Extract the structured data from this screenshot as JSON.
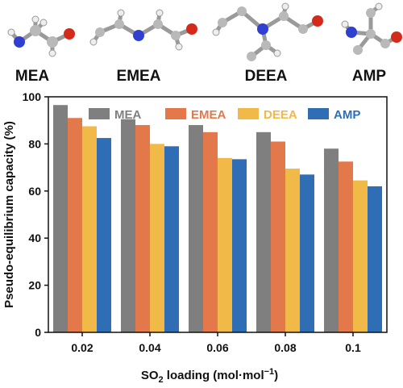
{
  "molecules": [
    {
      "label": "MEA"
    },
    {
      "label": "EMEA"
    },
    {
      "label": "DEEA"
    },
    {
      "label": "AMP"
    }
  ],
  "atom_colors": {
    "carbon": "#b9b9b9",
    "nitrogen": "#2f3fd0",
    "oxygen": "#d42a1c",
    "hydrogen": "#f2f2f2"
  },
  "chart_data": {
    "type": "bar",
    "categories": [
      "0.02",
      "0.04",
      "0.06",
      "0.08",
      "0.1"
    ],
    "series": [
      {
        "name": "MEA",
        "color": "#7f7f7f",
        "values": [
          96.5,
          90.5,
          88,
          85,
          78
        ]
      },
      {
        "name": "EMEA",
        "color": "#e3794a",
        "values": [
          91,
          88,
          85,
          81,
          72.5
        ]
      },
      {
        "name": "DEEA",
        "color": "#f0b948",
        "values": [
          87.5,
          80,
          74,
          69.5,
          64.5
        ]
      },
      {
        "name": "AMP",
        "color": "#2f6db5",
        "values": [
          82.5,
          79,
          73.5,
          67,
          62
        ]
      }
    ],
    "ylabel": "Pseudo-equilibrium capacity (%)",
    "xlabel_main": "SO",
    "xlabel_sub": "2",
    "xlabel_rest": " loading (mol·mol",
    "xlabel_sup": "−1",
    "xlabel_end": ")",
    "ylim": [
      0,
      100
    ],
    "yticks": [
      0,
      20,
      40,
      60,
      80,
      100
    ],
    "legend_position": "top-right",
    "grid": false
  }
}
